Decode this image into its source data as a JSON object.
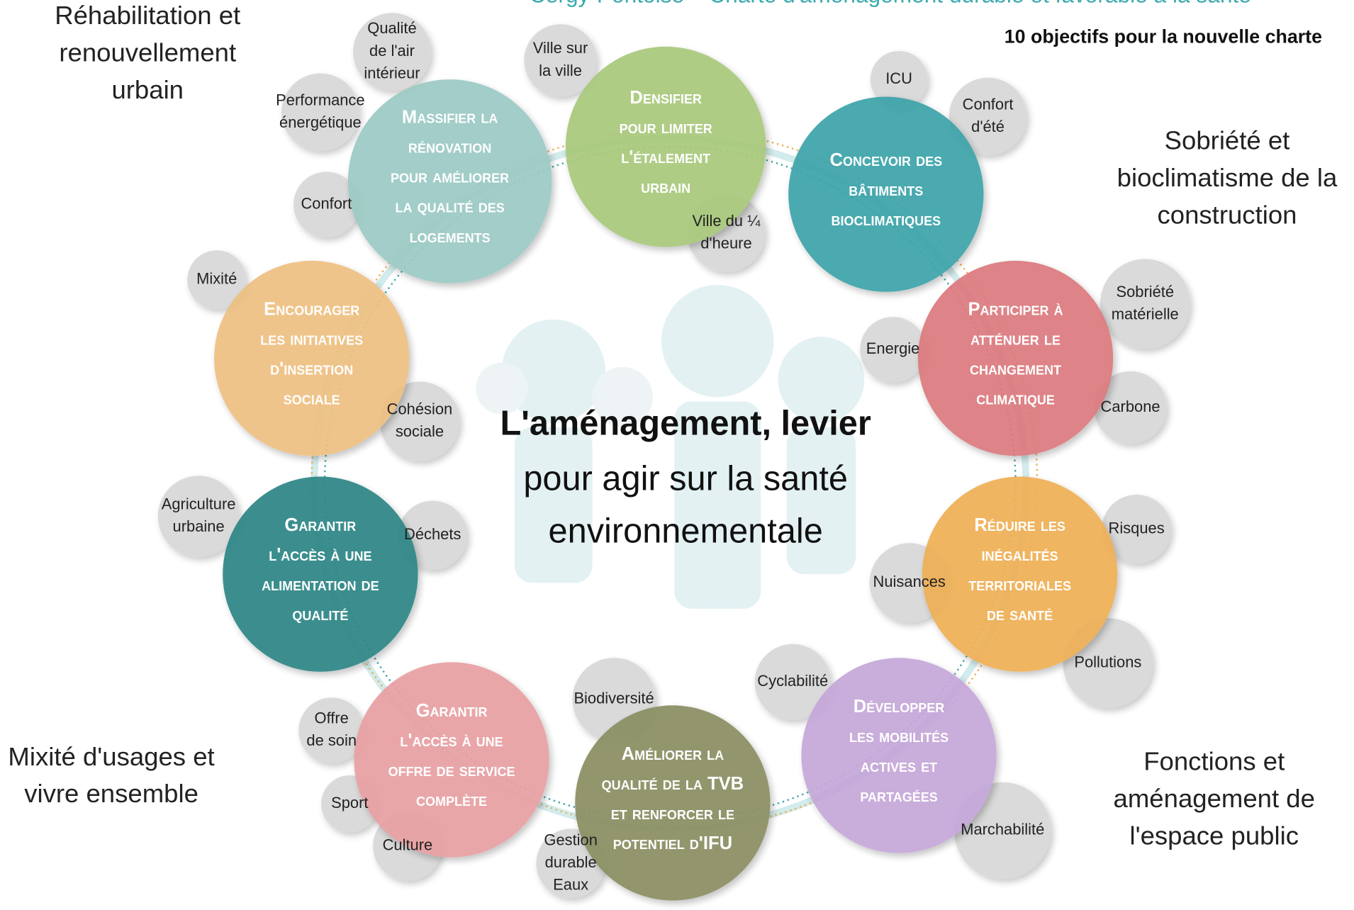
{
  "title": "Cergy-Pontoise – Charte d'aménagement durable et favorable à la santé",
  "subtitle": "10 objectifs pour la nouvelle charte",
  "center": {
    "headline": "L'aménagement, levier",
    "lines": [
      "pour agir sur la santé",
      "environnementale"
    ]
  },
  "themes": [
    {
      "lines": [
        "Réhabilitation et",
        "renouvellement",
        "urbain"
      ]
    },
    {
      "lines": [
        "Sobriété et",
        "bioclimatisme de la",
        "construction"
      ]
    },
    {
      "lines": [
        "Mixité d'usages et",
        "vivre ensemble"
      ]
    },
    {
      "lines": [
        "Fonctions et",
        "aménagement de",
        "l'espace public"
      ]
    }
  ],
  "objectives": [
    {
      "lines": [
        "Densifier",
        "pour limiter",
        "l'étalement",
        "urbain"
      ],
      "color": "#a9c97c"
    },
    {
      "lines": [
        "Concevoir des",
        "bâtiments",
        "bioclimatiques"
      ],
      "color": "#3ea4a9"
    },
    {
      "lines": [
        "Participer à",
        "atténuer le",
        "changement",
        "climatique"
      ],
      "color": "#dc7a7e"
    },
    {
      "lines": [
        "Réduire les",
        "inégalités",
        "territoriales",
        "de santé"
      ],
      "color": "#efb057"
    },
    {
      "lines": [
        "Développer",
        "les mobilités",
        "actives et",
        "partagées"
      ],
      "color": "#c5a7d9"
    },
    {
      "lines": [
        "Améliorer la",
        "qualité de la TVB",
        "et renforcer le",
        "potentiel d'IFU"
      ],
      "color": "#8b8f63"
    },
    {
      "lines": [
        "Garantir",
        "l'accès à une",
        "offre de service",
        "complète"
      ],
      "color": "#e8a0a3"
    },
    {
      "lines": [
        "Garantir",
        "l'accès à une",
        "alimentation de",
        "qualité"
      ],
      "color": "#2f8686"
    },
    {
      "lines": [
        "Encourager",
        "les initiatives",
        "d'insertion",
        "sociale"
      ],
      "color": "#eec082"
    },
    {
      "lines": [
        "Massifier la",
        "rénovation",
        "pour améliorer",
        "la qualité des",
        "logements"
      ],
      "color": "#9ccac4"
    }
  ],
  "tags": [
    {
      "lines": [
        "Qualité",
        "de l'air",
        "intérieur"
      ]
    },
    {
      "lines": [
        "Performance",
        "énergétique"
      ]
    },
    {
      "lines": [
        "Confort"
      ]
    },
    {
      "lines": [
        "Ville sur",
        "la ville"
      ]
    },
    {
      "lines": [
        "Ville du ¼",
        "d'heure"
      ]
    },
    {
      "lines": [
        "ICU"
      ]
    },
    {
      "lines": [
        "Confort",
        "d'été"
      ]
    },
    {
      "lines": [
        "Sobriété",
        "matérielle"
      ]
    },
    {
      "lines": [
        "Energie"
      ]
    },
    {
      "lines": [
        "Carbone"
      ]
    },
    {
      "lines": [
        "Risques"
      ]
    },
    {
      "lines": [
        "Nuisances"
      ]
    },
    {
      "lines": [
        "Pollutions"
      ]
    },
    {
      "lines": [
        "Cyclabilité"
      ]
    },
    {
      "lines": [
        "Marchabilité"
      ]
    },
    {
      "lines": [
        "Biodiversité"
      ]
    },
    {
      "lines": [
        "Gestion",
        "durable",
        "Eaux"
      ]
    },
    {
      "lines": [
        "Offre",
        "de soin"
      ]
    },
    {
      "lines": [
        "Sport"
      ]
    },
    {
      "lines": [
        "Culture"
      ]
    },
    {
      "lines": [
        "Agriculture",
        "urbaine"
      ]
    },
    {
      "lines": [
        "Déchets"
      ]
    },
    {
      "lines": [
        "Mixité"
      ]
    },
    {
      "lines": [
        "Cohésion",
        "sociale"
      ]
    }
  ]
}
